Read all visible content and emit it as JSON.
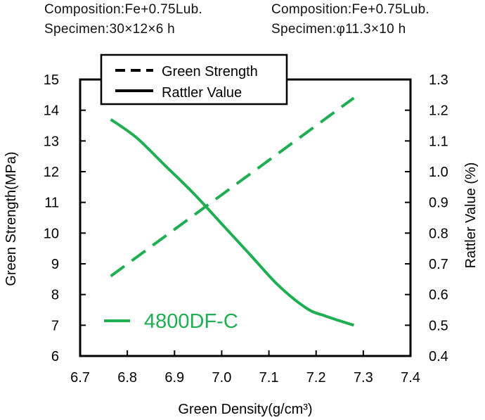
{
  "annotations": {
    "left": {
      "composition": "Composition:Fe+0.75Lub.",
      "specimen": "Specimen:30×12×6 h"
    },
    "right": {
      "composition": "Composition:Fe+0.75Lub.",
      "specimen": "Specimen:φ11.3×10 h"
    }
  },
  "colors": {
    "series": "#1fae52",
    "frame": "#000000"
  },
  "chart_data": {
    "type": "line",
    "xlabel": "Green Density(g/cm³)",
    "ylabel_left": "Green Strength(MPa)",
    "ylabel_right": "Rattler Value (%)",
    "xlim": [
      6.7,
      7.4
    ],
    "ylim_left": [
      6,
      15
    ],
    "ylim_right": [
      0.4,
      1.3
    ],
    "x_ticks": [
      "6.7",
      "6.8",
      "6.9",
      "7.0",
      "7.1",
      "7.2",
      "7.3",
      "7.4"
    ],
    "y_left_ticks": [
      "6",
      "7",
      "8",
      "9",
      "10",
      "11",
      "12",
      "13",
      "14",
      "15"
    ],
    "y_right_ticks": [
      "0.4",
      "0.5",
      "0.6",
      "0.7",
      "0.8",
      "0.9",
      "1.0",
      "1.1",
      "1.2",
      "1.3"
    ],
    "grid": false,
    "legend": {
      "placement": "top-left",
      "entries": [
        {
          "label": "Green Strength",
          "style": "dashed"
        },
        {
          "label": "Rattler Value",
          "style": "solid"
        }
      ]
    },
    "series_label": "4800DF-C",
    "series": [
      {
        "name": "Green Strength",
        "axis": "left",
        "style": "dashed",
        "color": "#1fae52",
        "points": [
          [
            6.765,
            8.6
          ],
          [
            7.28,
            14.4
          ]
        ]
      },
      {
        "name": "Rattler Value",
        "axis": "right",
        "style": "solid",
        "color": "#1fae52",
        "points": [
          [
            6.765,
            1.17
          ],
          [
            6.82,
            1.11
          ],
          [
            6.88,
            1.02
          ],
          [
            6.94,
            0.93
          ],
          [
            7.0,
            0.83
          ],
          [
            7.06,
            0.73
          ],
          [
            7.12,
            0.63
          ],
          [
            7.18,
            0.555
          ],
          [
            7.22,
            0.53
          ],
          [
            7.28,
            0.5
          ]
        ]
      }
    ]
  }
}
